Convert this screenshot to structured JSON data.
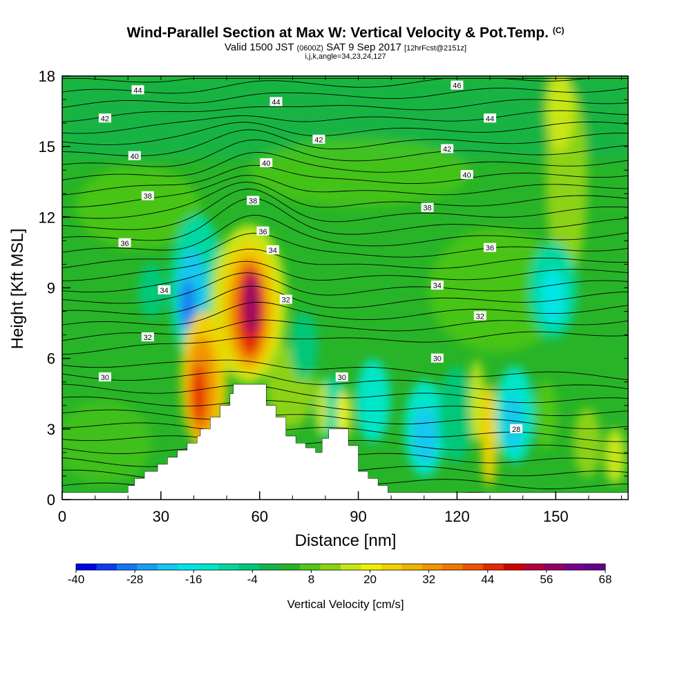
{
  "title": {
    "main": "Wind-Parallel Section at Max W: Vertical Velocity & Pot.Temp.",
    "copyright": "(C)",
    "valid_prefix": "Valid 1500 JST",
    "valid_utc": "(0600Z)",
    "valid_date": "SAT 9 Sep 2017",
    "forecast": "[12hrFcst@2151z]",
    "indices": "i,j,k,angle=34,23,24,127"
  },
  "chart_data": {
    "type": "heatmap",
    "xlabel": "Distance [nm]",
    "ylabel": "Height [Kft MSL]",
    "xlim": [
      0,
      172
    ],
    "ylim": [
      0,
      18
    ],
    "x_ticks": [
      0,
      30,
      60,
      90,
      120,
      150
    ],
    "y_ticks": [
      0,
      3,
      6,
      9,
      12,
      15,
      18
    ],
    "colorbar": {
      "label": "Vertical Velocity [cm/s]",
      "ticks": [
        -40,
        -28,
        -16,
        -4,
        8,
        20,
        32,
        44,
        56,
        68
      ],
      "range": [
        -40,
        68
      ],
      "colors": [
        "#0000e6",
        "#0a3cf0",
        "#1478f0",
        "#14a0f0",
        "#14c8f0",
        "#00e6e6",
        "#00e6c8",
        "#00d8a0",
        "#00c878",
        "#14b450",
        "#28b428",
        "#50c814",
        "#8cd214",
        "#c8e614",
        "#f0f000",
        "#f0d200",
        "#f0b400",
        "#f09600",
        "#f07800",
        "#f05000",
        "#e62800",
        "#d20000",
        "#b4003c",
        "#960064",
        "#78008c",
        "#64008c"
      ]
    },
    "terrain": {
      "x": [
        0,
        20,
        20,
        22,
        22,
        25,
        25,
        29,
        29,
        32,
        32,
        35,
        35,
        38,
        38,
        41,
        41,
        42,
        42,
        45,
        45,
        48,
        48,
        51,
        51,
        52,
        52,
        62,
        62,
        65,
        65,
        68,
        68,
        71,
        71,
        74,
        74,
        77,
        77,
        79,
        79,
        81,
        81,
        87,
        87,
        90,
        90,
        93,
        93,
        96,
        96,
        99,
        99,
        104,
        104,
        172
      ],
      "y": [
        0.3,
        0.3,
        0.6,
        0.6,
        0.9,
        0.9,
        1.2,
        1.2,
        1.5,
        1.5,
        1.8,
        1.8,
        2.1,
        2.1,
        2.4,
        2.4,
        2.7,
        2.7,
        3.0,
        3.0,
        3.5,
        3.5,
        4.0,
        4.0,
        4.5,
        4.5,
        4.9,
        4.9,
        4.0,
        4.0,
        3.5,
        3.5,
        2.7,
        2.7,
        2.4,
        2.4,
        2.2,
        2.2,
        2.0,
        2.0,
        2.6,
        2.6,
        3.0,
        3.0,
        2.3,
        2.3,
        1.2,
        1.2,
        0.9,
        0.9,
        0.6,
        0.6,
        0.3,
        0.3,
        0.3,
        0.3
      ]
    },
    "isentrope_labels": [
      {
        "x": 23,
        "y": 17.4,
        "text": "44"
      },
      {
        "x": 65,
        "y": 16.9,
        "text": "44"
      },
      {
        "x": 120,
        "y": 17.6,
        "text": "46"
      },
      {
        "x": 13,
        "y": 16.2,
        "text": "42"
      },
      {
        "x": 130,
        "y": 16.2,
        "text": "44"
      },
      {
        "x": 78,
        "y": 15.3,
        "text": "42"
      },
      {
        "x": 22,
        "y": 14.6,
        "text": "40"
      },
      {
        "x": 62,
        "y": 14.3,
        "text": "40"
      },
      {
        "x": 117,
        "y": 14.9,
        "text": "42"
      },
      {
        "x": 123,
        "y": 13.8,
        "text": "40"
      },
      {
        "x": 26,
        "y": 12.9,
        "text": "38"
      },
      {
        "x": 58,
        "y": 12.7,
        "text": "38"
      },
      {
        "x": 111,
        "y": 12.4,
        "text": "38"
      },
      {
        "x": 19,
        "y": 10.9,
        "text": "36"
      },
      {
        "x": 61,
        "y": 11.4,
        "text": "36"
      },
      {
        "x": 130,
        "y": 10.7,
        "text": "36"
      },
      {
        "x": 64,
        "y": 10.6,
        "text": "34"
      },
      {
        "x": 31,
        "y": 8.9,
        "text": "34"
      },
      {
        "x": 114,
        "y": 9.1,
        "text": "34"
      },
      {
        "x": 68,
        "y": 8.5,
        "text": "32"
      },
      {
        "x": 26,
        "y": 6.9,
        "text": "32"
      },
      {
        "x": 127,
        "y": 7.8,
        "text": "32"
      },
      {
        "x": 13,
        "y": 5.2,
        "text": "30"
      },
      {
        "x": 85,
        "y": 5.2,
        "text": "30"
      },
      {
        "x": 114,
        "y": 6.0,
        "text": "30"
      },
      {
        "x": 138,
        "y": 3.0,
        "text": "28"
      }
    ]
  }
}
